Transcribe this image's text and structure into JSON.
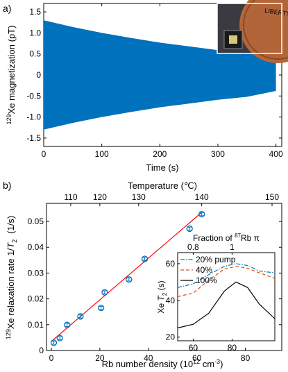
{
  "chart_data": [
    {
      "panel": "a)",
      "type": "area",
      "xlabel": "Time (s)",
      "ylabel_sup": "129",
      "ylabel": "Xe magnetization (pT)",
      "xlim": [
        0,
        410
      ],
      "ylim": [
        -1.7,
        1.7
      ],
      "xticks": [
        0,
        100,
        200,
        300,
        400
      ],
      "yticks": [
        -1.5,
        -1.0,
        -0.5,
        0,
        0.5,
        1.0,
        1.5
      ],
      "series": [
        {
          "x": [
            0,
            50,
            100,
            150,
            200,
            250,
            300,
            350,
            400
          ],
          "upper": [
            1.3,
            1.14,
            1.0,
            0.88,
            0.77,
            0.68,
            0.59,
            0.52,
            0.38
          ],
          "lower": [
            -1.3,
            -1.14,
            -1.0,
            -0.88,
            -0.77,
            -0.68,
            -0.59,
            -0.52,
            -0.38
          ],
          "color": "#0072BD"
        }
      ],
      "inset_photo": {
        "coin_text": "LIBERTY",
        "coin_color": "#b3653a"
      }
    },
    {
      "panel": "b)",
      "type": "scatter",
      "xlabel": "Rb number density (10",
      "xlabel_sup": "12",
      "xlabel_end": " cm",
      "xlabel_sup2": "-3",
      "xlabel_close": ")",
      "ylabel_pre": "129",
      "ylabel": "Xe relaxation rate 1/",
      "ylabel_T": "T",
      "ylabel_sub": "2",
      "ylabel_unit": "(1/s)",
      "top_label": "Temperature (℃)",
      "xlim": [
        -2,
        95
      ],
      "ylim": [
        0,
        0.057
      ],
      "xticks": [
        0,
        20,
        40,
        60,
        80
      ],
      "yticks": [
        0,
        0.01,
        0.02,
        0.03,
        0.04,
        0.05
      ],
      "yticklabels": [
        "0",
        "0.01",
        "0.02",
        "0.03",
        "0.04",
        "0.05"
      ],
      "top_ticks": [
        {
          "label": "110",
          "x": 8
        },
        {
          "label": "120",
          "x": 20
        },
        {
          "label": "130",
          "x": 36
        },
        {
          "label": "140",
          "x": 62
        },
        {
          "label": "150",
          "x": 91
        }
      ],
      "points": {
        "x": [
          1,
          3.5,
          6.5,
          12,
          20.5,
          22,
          32,
          38.5,
          57,
          62
        ],
        "y": [
          0.003,
          0.0048,
          0.0099,
          0.0132,
          0.0165,
          0.0225,
          0.0275,
          0.0355,
          0.0472,
          0.0528
        ],
        "err": [
          0.0006,
          0.0006,
          0.0006,
          0.0006,
          0.0006,
          0.0006,
          0.0006,
          0.0006,
          0.0006,
          0.0006
        ],
        "color": "#0072BD"
      },
      "fit": {
        "x": [
          0,
          62
        ],
        "y": [
          0.0035,
          0.0535
        ],
        "color": "#ff0000"
      }
    },
    {
      "panel": "inset",
      "type": "line",
      "top_label_pre": "Fraction of ",
      "top_label_sup": "87",
      "top_label_post": "Rb π",
      "ylabel_pre": "Xe ",
      "ylabel_T": "T",
      "ylabel_sub": "2",
      "ylabel_unit": " (s)",
      "xlim": [
        0.72,
        1.22
      ],
      "ylim": [
        18,
        66
      ],
      "yticks": [
        20,
        40,
        60
      ],
      "top_ticks": [
        {
          "label": "0.8",
          "x": 0.8
        },
        {
          "label": "1",
          "x": 1.0
        }
      ],
      "bottom_ticks": [
        {
          "label": "60",
          "x": 0.8
        },
        {
          "label": "80",
          "x": 1.0
        }
      ],
      "series": [
        {
          "name": "20% pump",
          "style": "dashdot",
          "color": "#0072BD",
          "x": [
            0.72,
            0.8,
            0.88,
            0.96,
            1.02,
            1.08,
            1.14,
            1.22
          ],
          "y": [
            47,
            49,
            54,
            58.5,
            60,
            59,
            56,
            55
          ]
        },
        {
          "name": "40%",
          "style": "dashed",
          "color": "#D95319",
          "x": [
            0.72,
            0.8,
            0.88,
            0.96,
            1.02,
            1.08,
            1.14,
            1.22
          ],
          "y": [
            42,
            44,
            51,
            57,
            58.5,
            57.5,
            55,
            52
          ]
        },
        {
          "name": "100%",
          "style": "solid",
          "color": "#000000",
          "x": [
            0.72,
            0.8,
            0.88,
            0.96,
            1.02,
            1.08,
            1.14,
            1.22
          ],
          "y": [
            25,
            27,
            33,
            45,
            50,
            47,
            38,
            30
          ]
        }
      ]
    }
  ]
}
